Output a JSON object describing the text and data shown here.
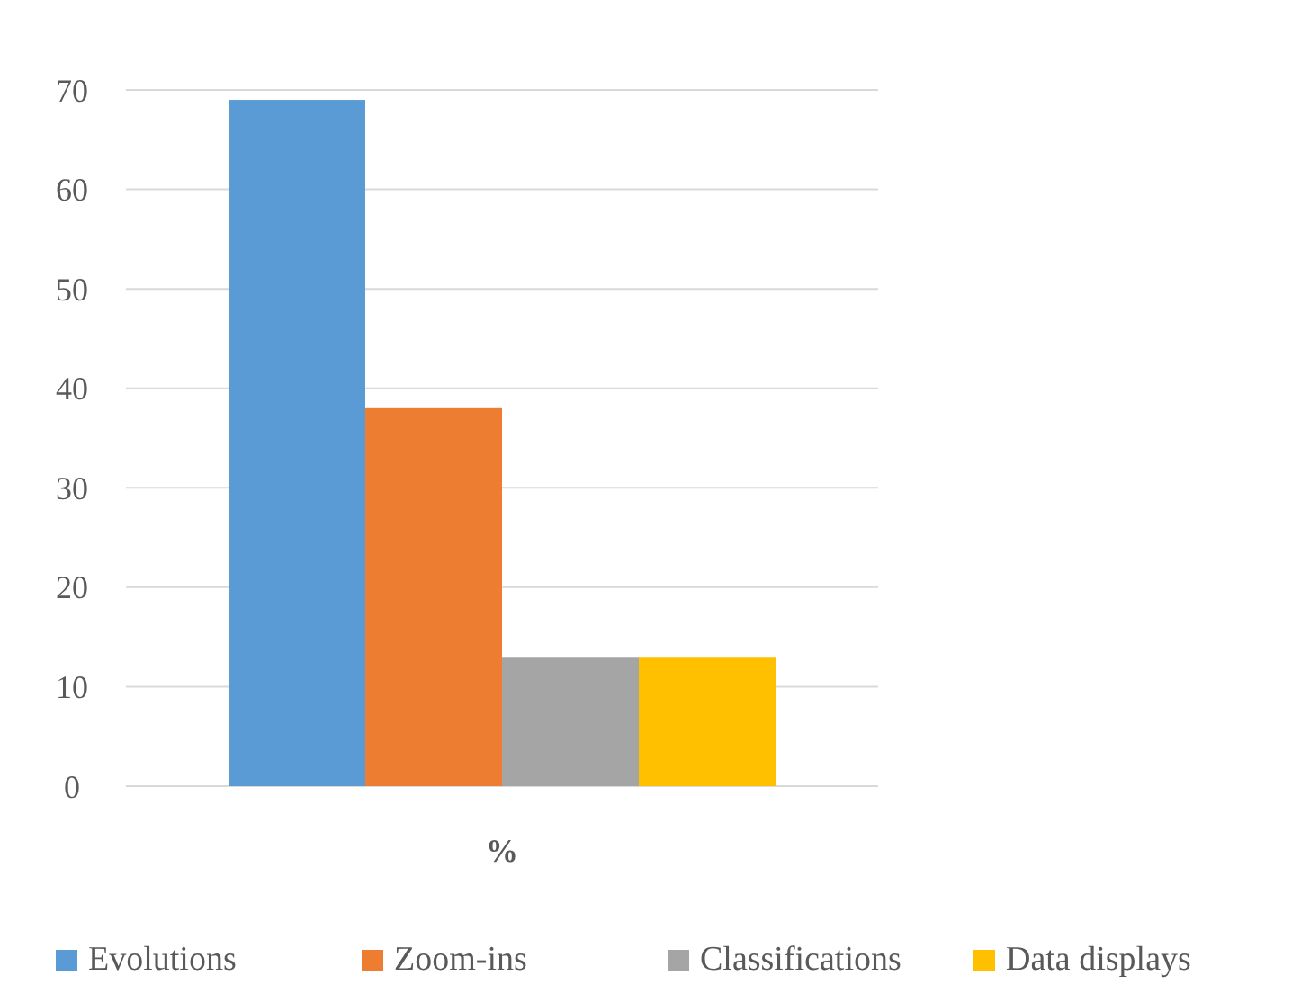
{
  "chart_data": {
    "type": "bar",
    "categories": [
      "%"
    ],
    "series": [
      {
        "name": "Evolutions",
        "color": "#5b9bd5",
        "values": [
          69
        ]
      },
      {
        "name": "Zoom-ins",
        "color": "#ed7d31",
        "values": [
          38
        ]
      },
      {
        "name": "Classifications",
        "color": "#a5a5a5",
        "values": [
          13
        ]
      },
      {
        "name": "Data displays",
        "color": "#ffc000",
        "values": [
          13
        ]
      }
    ],
    "ylim": [
      0,
      70
    ],
    "yticks": [
      0,
      10,
      20,
      30,
      40,
      50,
      60,
      70
    ],
    "grid": "y",
    "legend": "bottom"
  }
}
